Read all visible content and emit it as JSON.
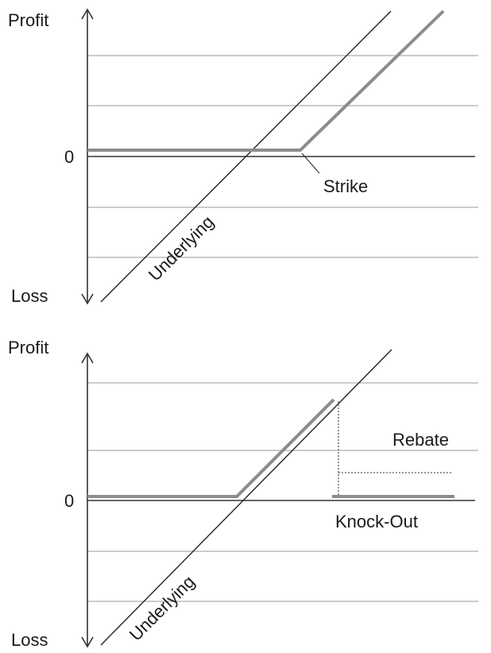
{
  "panels": [
    {
      "y_top_label": "Profit",
      "y_bottom_label": "Loss",
      "zero_label": "0",
      "underlying_label": "Underlying",
      "strike_label": "Strike"
    },
    {
      "y_top_label": "Profit",
      "y_bottom_label": "Loss",
      "zero_label": "0",
      "underlying_label": "Underlying",
      "rebate_label": "Rebate",
      "knockout_label": "Knock-Out"
    }
  ],
  "colors": {
    "axis": "#333333",
    "gridline": "#9a9a9a",
    "underlying_line": "#222222",
    "payoff_line": "#8c8c8c",
    "text": "#1a1a1a"
  }
}
